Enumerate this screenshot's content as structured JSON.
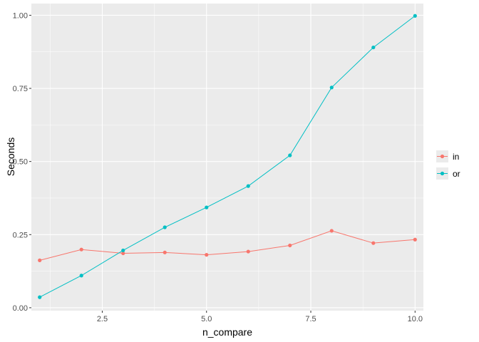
{
  "chart_data": {
    "type": "line",
    "xlabel": "n_compare",
    "ylabel": "Seconds",
    "x": [
      1,
      2,
      3,
      4,
      5,
      6,
      7,
      8,
      9,
      10
    ],
    "xlim": [
      0.8,
      10.2
    ],
    "ylim": [
      -0.01,
      1.04
    ],
    "x_ticks": [
      2.5,
      5.0,
      7.5,
      10.0
    ],
    "x_tick_labels": [
      "2.5",
      "5.0",
      "7.5",
      "10.0"
    ],
    "y_ticks": [
      0.0,
      0.25,
      0.5,
      0.75,
      1.0
    ],
    "y_tick_labels": [
      "0.00",
      "0.25",
      "0.50",
      "0.75",
      "1.00"
    ],
    "grid": true,
    "legend_position": "right",
    "series": [
      {
        "name": "in",
        "color": "#F8766D",
        "values": [
          0.162,
          0.199,
          0.186,
          0.189,
          0.181,
          0.192,
          0.213,
          0.263,
          0.221,
          0.233
        ]
      },
      {
        "name": "or",
        "color": "#00BFC4",
        "values": [
          0.036,
          0.11,
          0.196,
          0.275,
          0.343,
          0.416,
          0.521,
          0.753,
          0.89,
          0.998
        ]
      }
    ]
  }
}
